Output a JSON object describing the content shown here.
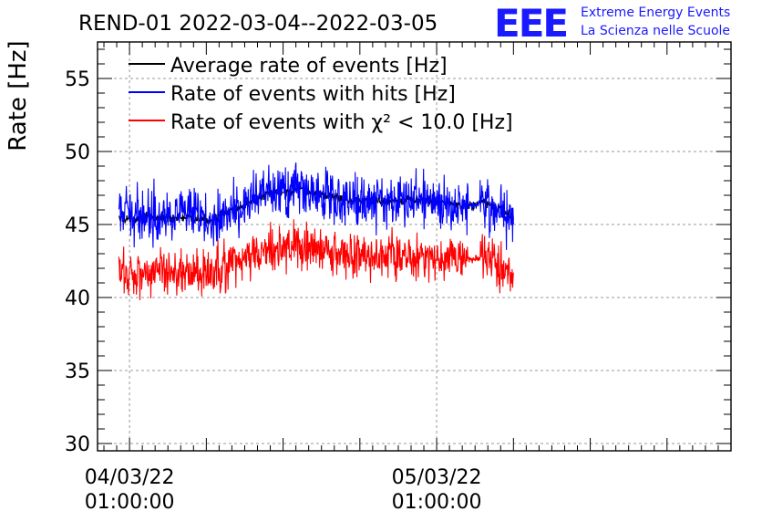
{
  "title": "REND-01 2022-03-04--2022-03-05",
  "logo": {
    "letters": "EEE",
    "line1": "Extreme Energy Events",
    "line2": "La Scienza nelle Scuole",
    "color": "#1a1aff"
  },
  "chart_data": {
    "type": "line",
    "title": "REND-01 2022-03-04--2022-03-05",
    "xlabel": "",
    "ylabel": "Rate [Hz]",
    "ylim": [
      29.5,
      57.5
    ],
    "xlim": [
      "2022-03-03 22:30",
      "2022-03-06 00:00"
    ],
    "yticks": [
      30,
      35,
      40,
      45,
      50,
      55
    ],
    "xticks": [
      {
        "x": "2022-03-04 01:00",
        "label_date": "04/03/22",
        "label_time": "01:00:00"
      },
      {
        "x": "2022-03-05 01:00",
        "label_date": "05/03/22",
        "label_time": "01:00:00"
      }
    ],
    "grid": true,
    "legend_position": "top-left",
    "series": [
      {
        "name": "Average rate of events [Hz]",
        "color": "#000000",
        "x_range": [
          "2022-03-04 00:10",
          "2022-03-05 07:00"
        ],
        "trend": [
          [
            0,
            45.4
          ],
          [
            0.14,
            45.5
          ],
          [
            0.23,
            45.3
          ],
          [
            0.29,
            46.0
          ],
          [
            0.37,
            47.0
          ],
          [
            0.45,
            47.4
          ],
          [
            0.52,
            47.0
          ],
          [
            0.6,
            46.6
          ],
          [
            0.75,
            46.7
          ],
          [
            0.9,
            46.3
          ],
          [
            0.92,
            46.6
          ],
          [
            1.0,
            45.5
          ]
        ],
        "noise": 0.2
      },
      {
        "name": "Rate of events with hits [Hz]",
        "color": "#0000ff",
        "x_range": [
          "2022-03-04 00:10",
          "2022-03-05 07:00"
        ],
        "trend": [
          [
            0,
            45.7
          ],
          [
            0.14,
            45.8
          ],
          [
            0.23,
            45.3
          ],
          [
            0.29,
            46.0
          ],
          [
            0.37,
            47.0
          ],
          [
            0.45,
            47.4
          ],
          [
            0.52,
            47.0
          ],
          [
            0.6,
            46.6
          ],
          [
            0.75,
            46.7
          ],
          [
            0.9,
            46.3
          ],
          [
            0.92,
            46.6
          ],
          [
            1.0,
            45.5
          ]
        ],
        "noise": 1.1
      },
      {
        "name": "Rate of events with χ² < 10.0 [Hz]",
        "color": "#ff0000",
        "x_range": [
          "2022-03-04 00:10",
          "2022-03-05 07:00"
        ],
        "trend": [
          [
            0,
            41.6
          ],
          [
            0.14,
            41.9
          ],
          [
            0.23,
            41.5
          ],
          [
            0.29,
            42.3
          ],
          [
            0.37,
            43.2
          ],
          [
            0.45,
            43.6
          ],
          [
            0.52,
            43.1
          ],
          [
            0.6,
            42.8
          ],
          [
            0.75,
            42.8
          ],
          [
            0.9,
            42.6
          ],
          [
            0.92,
            42.8
          ],
          [
            1.0,
            41.7
          ]
        ],
        "noise": 1.0
      }
    ]
  }
}
